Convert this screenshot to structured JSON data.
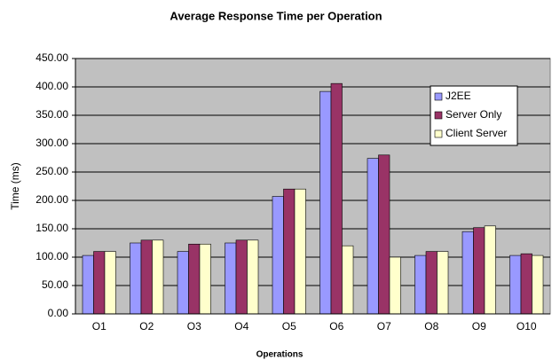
{
  "chart_data": {
    "type": "bar",
    "title": "Average Response Time per Operation",
    "x_label": "Operations",
    "y_label": "Time (ms)",
    "categories": [
      "O1",
      "O2",
      "O3",
      "O4",
      "O5",
      "O6",
      "O7",
      "O8",
      "O9",
      "O10"
    ],
    "series": [
      {
        "name": "J2EE",
        "color": "#9999ff",
        "values": [
          103,
          125,
          110,
          125,
          207,
          392,
          274,
          103,
          145,
          103
        ]
      },
      {
        "name": "Server Only",
        "color": "#993366",
        "values": [
          110,
          130,
          123,
          130,
          220,
          406,
          280,
          110,
          152,
          106
        ]
      },
      {
        "name": "Client Server",
        "color": "#ffffcc",
        "values": [
          110,
          130,
          123,
          130,
          220,
          120,
          100,
          110,
          155,
          103
        ]
      }
    ],
    "ylim": [
      0,
      450
    ],
    "yticks": [
      {
        "value": 0,
        "label": "0.00"
      },
      {
        "value": 50,
        "label": "50.00"
      },
      {
        "value": 100,
        "label": "100.00"
      },
      {
        "value": 150,
        "label": "150.00"
      },
      {
        "value": 200,
        "label": "200.00"
      },
      {
        "value": 250,
        "label": "250.00"
      },
      {
        "value": 300,
        "label": "300.00"
      },
      {
        "value": 350,
        "label": "350.00"
      },
      {
        "value": 400,
        "label": "400.00"
      },
      {
        "value": 450,
        "label": "450.00"
      }
    ],
    "grid": true,
    "legend": "upper right"
  }
}
